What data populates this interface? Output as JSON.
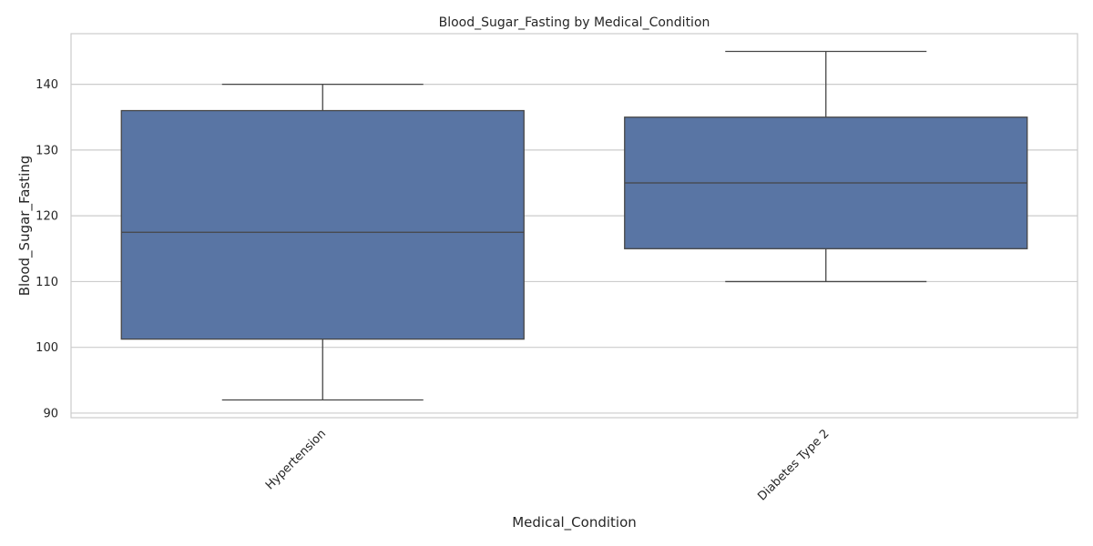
{
  "chart_data": {
    "type": "box",
    "title": "Blood_Sugar_Fasting by Medical_Condition",
    "xlabel": "Medical_Condition",
    "ylabel": "Blood_Sugar_Fasting",
    "categories": [
      "Hypertension",
      "Diabetes Type 2"
    ],
    "boxes": [
      {
        "category": "Hypertension",
        "whisker_low": 92,
        "q1": 101.25,
        "median": 117.5,
        "q3": 136,
        "whisker_high": 140
      },
      {
        "category": "Diabetes Type 2",
        "whisker_low": 110,
        "q1": 115,
        "median": 125,
        "q3": 135,
        "whisker_high": 145
      }
    ],
    "y_ticks": [
      90,
      100,
      110,
      120,
      130,
      140
    ],
    "ylim": [
      89.3,
      147.7
    ],
    "grid": true,
    "box_color": "#5975a4",
    "line_color": "#464646",
    "grid_color": "#cccccc"
  }
}
